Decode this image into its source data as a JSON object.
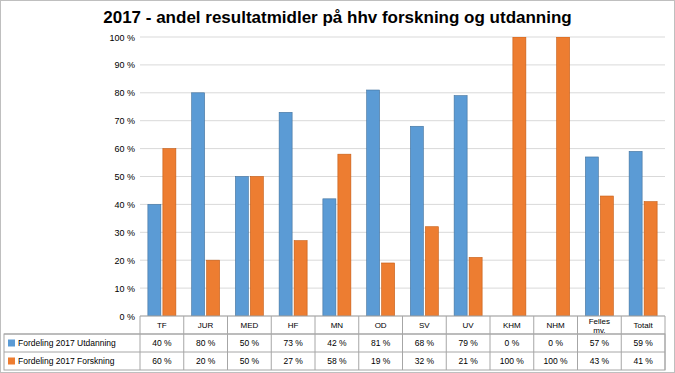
{
  "chart_data": {
    "type": "bar",
    "title": "2017 - andel resultatmidler på hhv forskning og utdanning",
    "categories": [
      "TF",
      "JUR",
      "MED",
      "HF",
      "MN",
      "OD",
      "SV",
      "UV",
      "KHM",
      "NHM",
      "Felles mv.",
      "Totalt"
    ],
    "series": [
      {
        "name": "Fordeling 2017 Utdanning",
        "color": "#5b9bd5",
        "values": [
          40,
          80,
          50,
          73,
          42,
          81,
          68,
          79,
          0,
          0,
          57,
          59
        ],
        "value_labels": [
          "40 %",
          "80 %",
          "50 %",
          "73 %",
          "42 %",
          "81 %",
          "68 %",
          "79 %",
          "0 %",
          "0 %",
          "57 %",
          "59 %"
        ]
      },
      {
        "name": "Fordeling 2017 Forskning",
        "color": "#ed7d31",
        "values": [
          60,
          20,
          50,
          27,
          58,
          19,
          32,
          21,
          100,
          100,
          43,
          41
        ],
        "value_labels": [
          "60 %",
          "20 %",
          "50 %",
          "27 %",
          "58 %",
          "19 %",
          "32 %",
          "21 %",
          "100 %",
          "100 %",
          "43 %",
          "41 %"
        ]
      }
    ],
    "ylim": [
      0,
      100
    ],
    "yticks": [
      {
        "value": 0,
        "label": "0 %"
      },
      {
        "value": 10,
        "label": "10 %"
      },
      {
        "value": 20,
        "label": "20 %"
      },
      {
        "value": 30,
        "label": "30 %"
      },
      {
        "value": 40,
        "label": "40 %"
      },
      {
        "value": 50,
        "label": "50 %"
      },
      {
        "value": 60,
        "label": "60 %"
      },
      {
        "value": 70,
        "label": "70 %"
      },
      {
        "value": 80,
        "label": "80 %"
      },
      {
        "value": 90,
        "label": "90 %"
      },
      {
        "value": 100,
        "label": "100 %"
      }
    ],
    "grid": true
  }
}
